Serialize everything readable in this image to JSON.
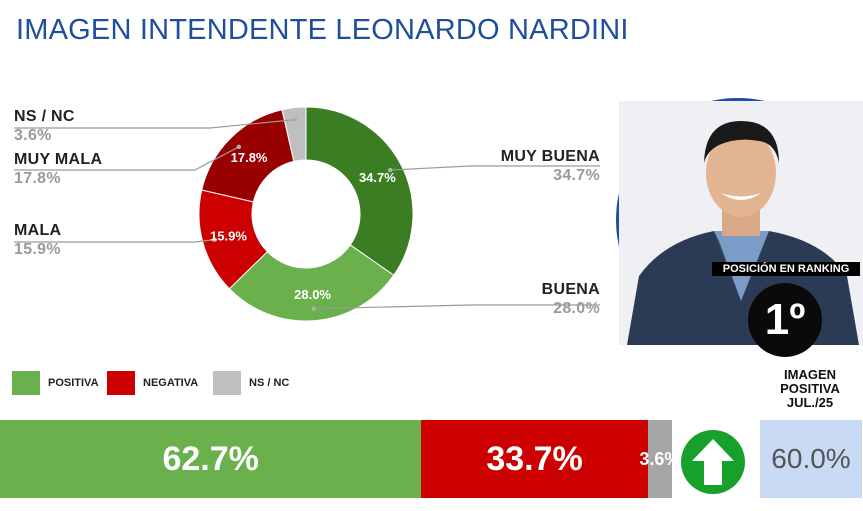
{
  "title": "IMAGEN INTENDENTE  LEONARDO NARDINI",
  "chart_data": [
    {
      "type": "pie",
      "categories": [
        "MUY BUENA",
        "BUENA",
        "MALA",
        "MUY MALA",
        "NS / NC"
      ],
      "values": [
        34.7,
        28.0,
        15.9,
        17.8,
        3.6
      ],
      "labels": [
        "34.7%",
        "28.0%",
        "15.9%",
        "17.8%",
        "3.6%"
      ],
      "colors": [
        "#3b7d23",
        "#6ab04c",
        "#cc0000",
        "#990000",
        "#bfbfbf"
      ],
      "donut": true
    },
    {
      "type": "bar",
      "orientation": "horizontal-stacked",
      "categories": [
        "POSITIVA",
        "NEGATIVA",
        "NS / NC"
      ],
      "values": [
        62.7,
        33.7,
        3.6
      ],
      "labels": [
        "62.7%",
        "33.7%",
        "3.6%"
      ],
      "colors": [
        "#6ab04c",
        "#cc0000",
        "#a6a6a6"
      ],
      "legend": "top-left"
    }
  ],
  "ranking": {
    "label": "POSICIÓN EN RANKING",
    "position": "1º"
  },
  "previous": {
    "label_lines": [
      "IMAGEN",
      "POSITIVA",
      "JUL./25"
    ],
    "value": "60.0%"
  },
  "icons": {
    "trend": "up-arrow-icon",
    "photo": "portrait-photo"
  }
}
